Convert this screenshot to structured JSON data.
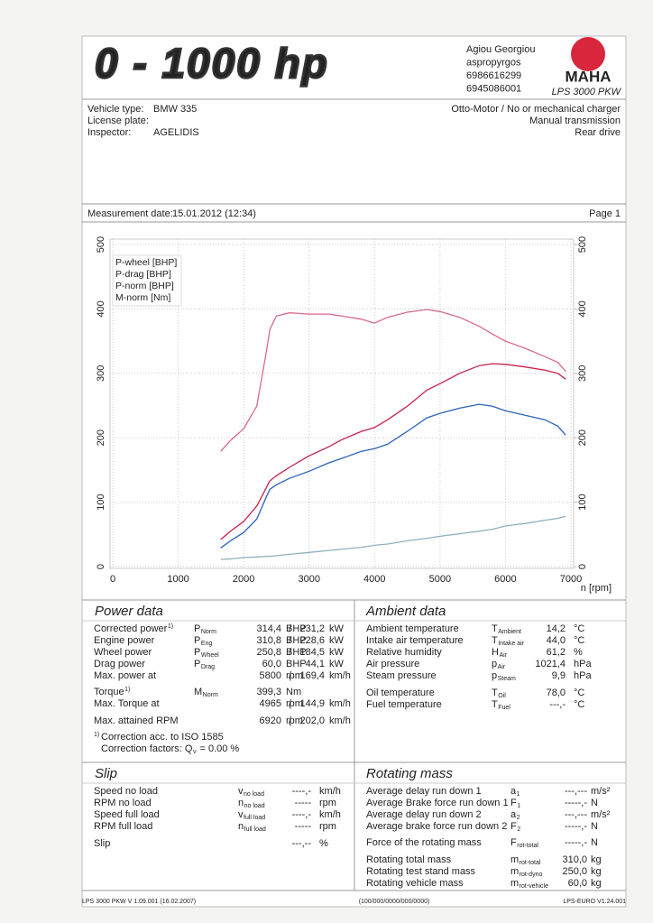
{
  "header": {
    "logo": "0 - 1000 hp",
    "address": [
      "Agiou Georgiou",
      "aspropyrgos",
      "6986616299",
      "6945086001"
    ],
    "brand": "MAHA",
    "model": "LPS 3000 PKW"
  },
  "vehicle": {
    "left": [
      {
        "label": "Vehicle type:",
        "value": "BMW 335"
      },
      {
        "label": "License plate:"
      },
      {
        "label": "Inspector:",
        "value": "AGELIDIS"
      }
    ],
    "right": [
      "Otto-Motor / No or mechanical charger",
      "Manual transmission",
      "Rear drive"
    ]
  },
  "measurement": {
    "label": "Measurement date:",
    "value": "15.01.2012 (12:34)",
    "page": "Page 1"
  },
  "chart_data": {
    "type": "line",
    "x": [
      1650,
      1800,
      2000,
      2200,
      2350,
      2400,
      2500,
      2700,
      3000,
      3300,
      3500,
      3800,
      4000,
      4200,
      4500,
      4800,
      5000,
      5300,
      5600,
      5800,
      6000,
      6300,
      6600,
      6800,
      6920
    ],
    "xlim": [
      0,
      7000
    ],
    "xticks": [
      0,
      1000,
      2000,
      3000,
      4000,
      5000,
      6000,
      7000
    ],
    "xlabel": "n [rpm]",
    "ylim": [
      0,
      500
    ],
    "yticks": [
      0,
      100,
      200,
      300,
      400,
      500
    ],
    "y2lim": [
      0,
      500
    ],
    "y2ticks": [
      0,
      100,
      200,
      300,
      400,
      500
    ],
    "y2color": "#eab0c2",
    "grid": true,
    "legend": "top-left",
    "series": [
      {
        "name": "P-wheel [BHP]",
        "color": "#2a62b8",
        "values": [
          29,
          40,
          53,
          74,
          109,
          120,
          127,
          137,
          148,
          161,
          168,
          179,
          183,
          190,
          210,
          231,
          238,
          246,
          252,
          249,
          242,
          235,
          228,
          218,
          204
        ]
      },
      {
        "name": "P-drag [BHP]",
        "color": "#8fb0c0",
        "values": [
          11,
          12,
          14,
          15,
          16,
          16,
          17,
          19,
          22,
          25,
          27,
          30,
          33,
          35,
          40,
          44,
          47,
          51,
          55,
          58,
          63,
          67,
          72,
          75,
          78
        ]
      },
      {
        "name": "P-norm [BHP]",
        "color": "#c8204a",
        "values": [
          42,
          55,
          70,
          94,
          123,
          133,
          141,
          154,
          172,
          186,
          197,
          210,
          216,
          228,
          249,
          274,
          284,
          300,
          312,
          315,
          314,
          310,
          305,
          300,
          291
        ]
      },
      {
        "name": "M-norm [Nm]",
        "color": "#d86a8a",
        "axis": "y2",
        "values": [
          179,
          196,
          214,
          249,
          335,
          368,
          389,
          394,
          392,
          392,
          389,
          384,
          378,
          387,
          395,
          399,
          396,
          387,
          373,
          361,
          350,
          339,
          326,
          317,
          303
        ]
      }
    ]
  },
  "power_data": {
    "title": "Power data",
    "rows": [
      {
        "label": "Corrected power",
        "note": "1)",
        "symbol": "P",
        "sub": "Norm",
        "value": "314,4",
        "unit": "BHP",
        "sep": "/",
        "value2": "231,2",
        "unit2": "kW",
        "color": "#c8204a"
      },
      {
        "label": "Engine power",
        "symbol": "P",
        "sub": "Eng",
        "value": "310,8",
        "unit": "BHP",
        "sep": "/",
        "value2": "228,6",
        "unit2": "kW",
        "color": "#c8204a"
      },
      {
        "label": "Wheel power",
        "symbol": "P",
        "sub": "Wheel",
        "value": "250,8",
        "unit": "BHP",
        "sep": "/",
        "value2": "184,5",
        "unit2": "kW",
        "color": "#2a62b8"
      },
      {
        "label": "Drag power",
        "symbol": "P",
        "sub": "Drag",
        "value": "60,0",
        "unit": "BHP",
        "value2": "44,1",
        "unit2": "kW",
        "color": "#9aa88a"
      },
      {
        "label": "Max. power at",
        "value": "5800",
        "unit": "rpm",
        "sep": "/",
        "value2": "169,4",
        "unit2": "km/h",
        "color": "#222222"
      },
      {
        "label": "Torque",
        "note": "1)",
        "symbol": "M",
        "sub": "Norm",
        "value": "399,3",
        "unit": "Nm",
        "color": "#d0508a"
      },
      {
        "label": "Max. Torque at",
        "value": "4965",
        "unit": "rpm",
        "sep": "/",
        "value2": "144,9",
        "unit2": "km/h",
        "color": "#222222"
      },
      {
        "label": "Max. attained RPM",
        "value": "6920",
        "unit": "rpm",
        "sep": "/",
        "value2": "202,0",
        "unit2": "km/h",
        "color": "#222222"
      }
    ],
    "notes": [
      {
        "mark": "1)",
        "text": "Correction acc. to ISO 1585"
      },
      {
        "text": "Correction factors: Q",
        "sub": "v",
        "value": "=  0.00 %"
      }
    ]
  },
  "ambient_data": {
    "title": "Ambient data",
    "rows": [
      {
        "label": "Ambient temperature",
        "symbol": "T",
        "sub": "Ambient",
        "value": "14,2",
        "unit": "°C"
      },
      {
        "label": "Intake air temperature",
        "symbol": "T",
        "sub": "Intake air",
        "value": "44,0",
        "unit": "°C"
      },
      {
        "label": "Relative humidity",
        "symbol": "H",
        "sub": "Air",
        "value": "61,2",
        "unit": "%"
      },
      {
        "label": "Air pressure",
        "symbol": "p",
        "sub": "Air",
        "value": "1021,4",
        "unit": "hPa"
      },
      {
        "label": "Steam pressure",
        "symbol": "p",
        "sub": "Steam",
        "value": "9,9",
        "unit": "hPa"
      },
      {
        "label": "Oil temperature",
        "symbol": "T",
        "sub": "Oil",
        "value": "78,0",
        "unit": "°C"
      },
      {
        "label": "Fuel temperature",
        "symbol": "T",
        "sub": "Fuel",
        "value": "---,-",
        "unit": "°C"
      }
    ]
  },
  "slip": {
    "title": "Slip",
    "rows": [
      {
        "label": "Speed no load",
        "symbol": "v",
        "sub": "no load",
        "value": "----,-",
        "unit": "km/h"
      },
      {
        "label": "RPM no load",
        "symbol": "n",
        "sub": "no load",
        "value": "-----",
        "unit": "rpm"
      },
      {
        "label": "Speed full load",
        "symbol": "v",
        "sub": "full load",
        "value": "----,-",
        "unit": "km/h"
      },
      {
        "label": "RPM full load",
        "symbol": "n",
        "sub": "full load",
        "value": "-----",
        "unit": "rpm"
      },
      {
        "label": "Slip",
        "value": "---,--",
        "unit": "%"
      }
    ]
  },
  "rotating_mass": {
    "title": "Rotating mass",
    "rows": [
      {
        "label": "Average delay run down 1",
        "symbol": "a",
        "sub": "1",
        "value": "---,---",
        "unit": "m/s²"
      },
      {
        "label": "Average Brake force run down 1",
        "symbol": "F",
        "sub": "1",
        "value": "-----,-",
        "unit": "N"
      },
      {
        "label": "Average delay run down 2",
        "symbol": "a",
        "sub": "2",
        "value": "---,---",
        "unit": "m/s²"
      },
      {
        "label": "Average brake force run down 2",
        "symbol": "F",
        "sub": "2",
        "value": "-----,-",
        "unit": "N"
      },
      {
        "label": "Force of the rotating mass",
        "symbol": "F",
        "sub": "rot-total",
        "value": "-----,-",
        "unit": "N"
      },
      {
        "label": "Rotating total mass",
        "symbol": "m",
        "sub": "rot-total",
        "value": "310,0",
        "unit": "kg"
      },
      {
        "label": "Rotating test stand mass",
        "symbol": "m",
        "sub": "rot-dyno",
        "value": "250,0",
        "unit": "kg"
      },
      {
        "label": "Rotating vehicle mass",
        "symbol": "m",
        "sub": "rot-vehicle",
        "value": "60,0",
        "unit": "kg"
      }
    ]
  },
  "footer": [
    "LPS 3000 PKW V 1.09.001 (16.02.2007)",
    "(100/000/0000/000/0000)",
    "LPS-EURO V1.24.001"
  ]
}
